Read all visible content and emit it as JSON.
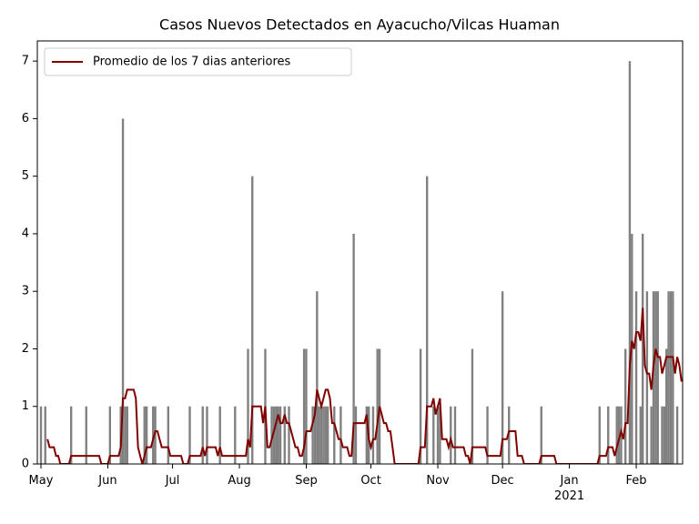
{
  "chart_data": {
    "type": "bar",
    "title": "Casos Nuevos Detectados en Ayacucho/Vilcas Huaman",
    "categories": [
      "May",
      null,
      null,
      null,
      null,
      null,
      null,
      null,
      null,
      null,
      null,
      null,
      null,
      null,
      null,
      null,
      null,
      null,
      null,
      null,
      null,
      null,
      null,
      null,
      null,
      null,
      null,
      null,
      null,
      null,
      null,
      "Jun",
      null,
      null,
      null,
      null,
      null,
      null,
      null,
      null,
      null,
      null,
      null,
      null,
      null,
      null,
      null,
      null,
      null,
      null,
      null,
      null,
      null,
      null,
      null,
      null,
      null,
      null,
      null,
      null,
      null,
      "Jul",
      null,
      null,
      null,
      null,
      null,
      null,
      null,
      null,
      null,
      null,
      null,
      null,
      null,
      null,
      null,
      null,
      null,
      null,
      null,
      null,
      null,
      null,
      null,
      null,
      null,
      null,
      null,
      null,
      null,
      null,
      "Aug",
      null,
      null,
      null,
      null,
      null,
      null,
      null,
      null,
      null,
      null,
      null,
      null,
      null,
      null,
      null,
      null,
      null,
      null,
      null,
      null,
      null,
      null,
      null,
      null,
      null,
      null,
      null,
      null,
      null,
      null,
      "Sep",
      null,
      null,
      null,
      null,
      null,
      null,
      null,
      null,
      null,
      null,
      null,
      null,
      null,
      null,
      null,
      null,
      null,
      null,
      null,
      null,
      null,
      null,
      null,
      null,
      null,
      null,
      null,
      null,
      null,
      "Oct",
      null,
      null,
      null,
      null,
      null,
      null,
      null,
      null,
      null,
      null,
      null,
      null,
      null,
      null,
      null,
      null,
      null,
      null,
      null,
      null,
      null,
      null,
      null,
      null,
      null,
      null,
      null,
      null,
      null,
      null,
      "Nov",
      null,
      null,
      null,
      null,
      null,
      null,
      null,
      null,
      null,
      null,
      null,
      null,
      null,
      null,
      null,
      null,
      null,
      null,
      null,
      null,
      null,
      null,
      null,
      null,
      null,
      null,
      null,
      null,
      null,
      "Dec",
      null,
      null,
      null,
      null,
      null,
      null,
      null,
      null,
      null,
      null,
      null,
      null,
      null,
      null,
      null,
      null,
      null,
      null,
      null,
      null,
      null,
      null,
      null,
      null,
      null,
      null,
      null,
      null,
      null,
      null,
      "Jan\n2021",
      null,
      null,
      null,
      null,
      null,
      null,
      null,
      null,
      null,
      null,
      null,
      null,
      null,
      null,
      null,
      null,
      null,
      null,
      null,
      null,
      null,
      null,
      null,
      null,
      null,
      null,
      null,
      null,
      null,
      null,
      "Feb",
      null,
      null,
      null,
      null,
      null,
      null,
      null,
      null,
      null,
      null,
      null,
      null,
      null,
      null,
      null,
      null,
      null,
      null,
      null,
      null,
      null
    ],
    "series": [
      {
        "type": "bar",
        "color": "#808080",
        "values": [
          1,
          0,
          1,
          0,
          0,
          0,
          0,
          0,
          0,
          0,
          0,
          0,
          0,
          0,
          1,
          0,
          0,
          0,
          0,
          0,
          0,
          1,
          0,
          0,
          0,
          0,
          0,
          0,
          0,
          0,
          0,
          0,
          1,
          0,
          0,
          0,
          0,
          1,
          6,
          1,
          1,
          0,
          0,
          0,
          0,
          0,
          0,
          0,
          1,
          1,
          0,
          0,
          1,
          1,
          0,
          0,
          0,
          0,
          0,
          1,
          0,
          0,
          0,
          0,
          0,
          0,
          0,
          0,
          0,
          1,
          0,
          0,
          0,
          0,
          0,
          1,
          0,
          1,
          0,
          0,
          0,
          0,
          0,
          1,
          0,
          0,
          0,
          0,
          0,
          0,
          1,
          0,
          0,
          0,
          0,
          0,
          2,
          0,
          5,
          0,
          0,
          0,
          0,
          0,
          2,
          0,
          0,
          1,
          1,
          1,
          1,
          1,
          0,
          1,
          0,
          1,
          0,
          0,
          0,
          0,
          0,
          0,
          2,
          2,
          0,
          0,
          1,
          1,
          3,
          1,
          1,
          1,
          1,
          1,
          0,
          0,
          1,
          0,
          0,
          1,
          0,
          0,
          0,
          0,
          0,
          4,
          1,
          0,
          0,
          0,
          0,
          1,
          1,
          0,
          1,
          0,
          2,
          2,
          0,
          0,
          0,
          0,
          0,
          0,
          0,
          0,
          0,
          0,
          0,
          0,
          0,
          0,
          0,
          0,
          0,
          0,
          2,
          0,
          0,
          5,
          0,
          0,
          1,
          0,
          1,
          1,
          0,
          0,
          0,
          0,
          1,
          0,
          1,
          0,
          0,
          0,
          0,
          0,
          0,
          0,
          2,
          0,
          0,
          0,
          0,
          0,
          0,
          1,
          0,
          0,
          0,
          0,
          0,
          0,
          3,
          0,
          0,
          1,
          0,
          0,
          0,
          0,
          0,
          0,
          0,
          0,
          0,
          0,
          0,
          0,
          0,
          0,
          1,
          0,
          0,
          0,
          0,
          0,
          0,
          0,
          0,
          0,
          0,
          0,
          0,
          0,
          0,
          0,
          0,
          0,
          0,
          0,
          0,
          0,
          0,
          0,
          0,
          0,
          0,
          1,
          0,
          0,
          0,
          1,
          0,
          0,
          0,
          1,
          1,
          1,
          0,
          2,
          0,
          7,
          4,
          0,
          3,
          0,
          1,
          4,
          0,
          3,
          0,
          1,
          3,
          3,
          3,
          0,
          1,
          1,
          2,
          3,
          3,
          3,
          0,
          1,
          0,
          0
        ]
      },
      {
        "type": "line",
        "name": "Promedio de los 7 dias anteriores",
        "color": "#800000",
        "values": [
          null,
          null,
          null,
          0.43,
          0.29,
          0.29,
          0.29,
          0.14,
          0.14,
          0,
          0,
          0,
          0,
          0,
          0.14,
          0.14,
          0.14,
          0.14,
          0.14,
          0.14,
          0.14,
          0.14,
          0.14,
          0.14,
          0.14,
          0.14,
          0.14,
          0.14,
          0,
          0,
          0,
          0,
          0.14,
          0.14,
          0.14,
          0.14,
          0.14,
          0.29,
          1.14,
          1.14,
          1.29,
          1.29,
          1.29,
          1.29,
          1.14,
          0.29,
          0.14,
          0,
          0.14,
          0.29,
          0.29,
          0.29,
          0.43,
          0.57,
          0.57,
          0.43,
          0.29,
          0.29,
          0.29,
          0.29,
          0.14,
          0.14,
          0.14,
          0.14,
          0.14,
          0.14,
          0,
          0,
          0,
          0.14,
          0.14,
          0.14,
          0.14,
          0.14,
          0.14,
          0.29,
          0.14,
          0.29,
          0.29,
          0.29,
          0.29,
          0.29,
          0.14,
          0.29,
          0.14,
          0.14,
          0.14,
          0.14,
          0.14,
          0.14,
          0.14,
          0.14,
          0.14,
          0.14,
          0.14,
          0.14,
          0.43,
          0.29,
          1,
          1,
          1,
          1,
          1,
          0.71,
          1,
          0.29,
          0.29,
          0.43,
          0.57,
          0.71,
          0.86,
          0.71,
          0.71,
          0.86,
          0.71,
          0.71,
          0.57,
          0.43,
          0.29,
          0.29,
          0.14,
          0.14,
          0.29,
          0.57,
          0.57,
          0.57,
          0.71,
          0.86,
          1.29,
          1.14,
          1,
          1.14,
          1.29,
          1.29,
          1.14,
          0.71,
          0.71,
          0.57,
          0.43,
          0.43,
          0.29,
          0.29,
          0.29,
          0.14,
          0.14,
          0.71,
          0.71,
          0.71,
          0.71,
          0.71,
          0.71,
          0.86,
          0.43,
          0.29,
          0.43,
          0.43,
          0.71,
          1,
          0.86,
          0.71,
          0.71,
          0.57,
          0.57,
          0.29,
          0,
          0,
          0,
          0,
          0,
          0,
          0,
          0,
          0,
          0,
          0,
          0,
          0.29,
          0.29,
          0.29,
          1,
          1,
          1,
          1.14,
          0.86,
          1,
          1.14,
          0.43,
          0.43,
          0.43,
          0.29,
          0.43,
          0.29,
          0.29,
          0.29,
          0.29,
          0.29,
          0.29,
          0.14,
          0.14,
          0,
          0.29,
          0.29,
          0.29,
          0.29,
          0.29,
          0.29,
          0.29,
          0.14,
          0.14,
          0.14,
          0.14,
          0.14,
          0.14,
          0.14,
          0.43,
          0.43,
          0.43,
          0.57,
          0.57,
          0.57,
          0.57,
          0.14,
          0.14,
          0.14,
          0,
          0,
          0,
          0,
          0,
          0,
          0,
          0,
          0.14,
          0.14,
          0.14,
          0.14,
          0.14,
          0.14,
          0.14,
          0,
          0,
          0,
          0,
          0,
          0,
          0,
          0,
          0,
          0,
          0,
          0,
          0,
          0,
          0,
          0,
          0,
          0,
          0,
          0,
          0.14,
          0.14,
          0.14,
          0.14,
          0.29,
          0.29,
          0.29,
          0.14,
          0.29,
          0.43,
          0.57,
          0.43,
          0.71,
          0.71,
          1.71,
          2.14,
          2,
          2.29,
          2.29,
          2.14,
          2.71,
          1.71,
          1.57,
          1.57,
          1.29,
          1.71,
          2,
          1.86,
          1.86,
          1.57,
          1.71,
          1.86,
          1.86,
          1.86,
          1.86,
          1.57,
          1.86,
          1.71,
          1.43
        ]
      }
    ],
    "ylim": [
      0,
      7.35
    ],
    "yticks": [
      0,
      1,
      2,
      3,
      4,
      5,
      6,
      7
    ],
    "grid": false,
    "legend": "upper left"
  }
}
